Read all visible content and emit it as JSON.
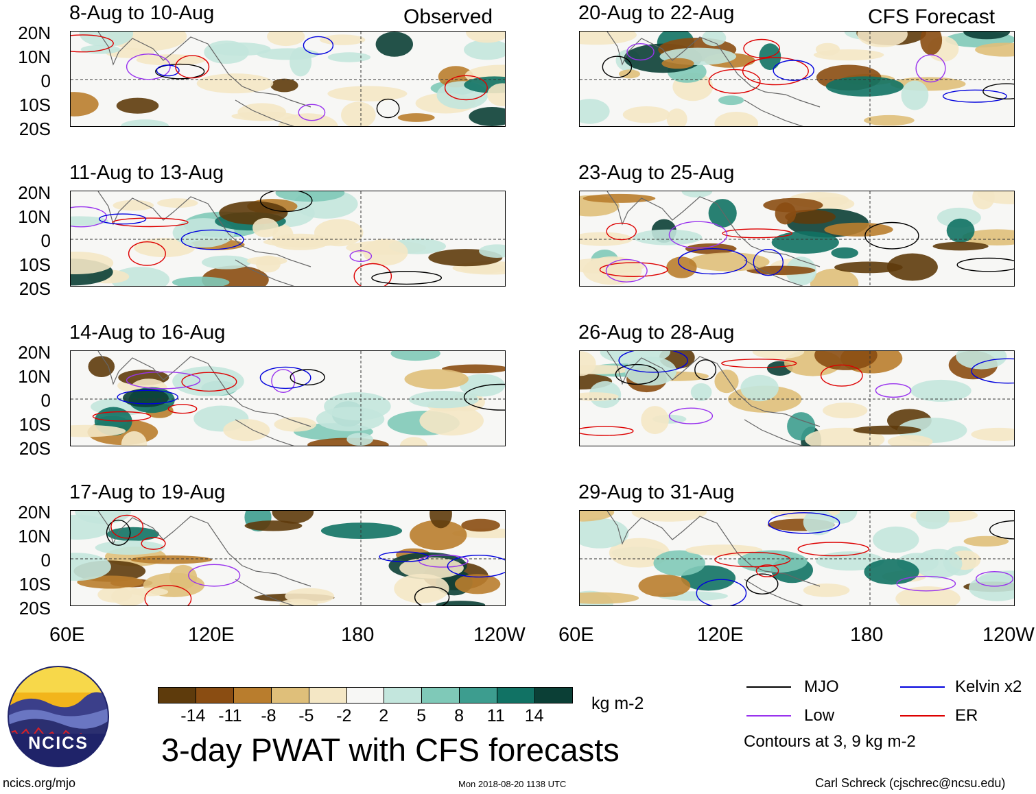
{
  "header": {
    "observed_label": "Observed",
    "forecast_label": "CFS Forecast"
  },
  "panels": [
    {
      "title": "8-Aug to 10-Aug",
      "column": "left",
      "row": 0
    },
    {
      "title": "11-Aug to 13-Aug",
      "column": "left",
      "row": 1
    },
    {
      "title": "14-Aug to 16-Aug",
      "column": "left",
      "row": 2
    },
    {
      "title": "17-Aug to 19-Aug",
      "column": "left",
      "row": 3
    },
    {
      "title": "20-Aug to 22-Aug",
      "column": "right",
      "row": 0
    },
    {
      "title": "23-Aug to 25-Aug",
      "column": "right",
      "row": 1
    },
    {
      "title": "26-Aug to 28-Aug",
      "column": "right",
      "row": 2
    },
    {
      "title": "29-Aug to 31-Aug",
      "column": "right",
      "row": 3
    }
  ],
  "lat_labels": [
    "20N",
    "10N",
    "0",
    "10S",
    "20S"
  ],
  "lon_labels": [
    "60E",
    "120E",
    "180",
    "120W"
  ],
  "colorbar": {
    "colors": [
      "#5e3b0c",
      "#8a4d12",
      "#b97d2d",
      "#dfbf7a",
      "#f4e7c5",
      "#f7f7f5",
      "#c3e6dd",
      "#7fc9b8",
      "#3d9d8f",
      "#117264",
      "#0b3f36"
    ],
    "labels": [
      "-14",
      "-11",
      "-8",
      "-5",
      "-2",
      "2",
      "5",
      "8",
      "11",
      "14"
    ],
    "units": "kg m-2"
  },
  "title": "3-day PWAT with CFS forecasts",
  "legend": {
    "items": [
      {
        "label": "MJO",
        "color": "#000000"
      },
      {
        "label": "Kelvin x2",
        "color": "#0000dd"
      },
      {
        "label": "Low",
        "color": "#9933ee"
      },
      {
        "label": "ER",
        "color": "#dd0000"
      }
    ],
    "note": "Contours at 3, 9 kg m-2"
  },
  "footer": {
    "site": "ncics.org/mjo",
    "timestamp": "Mon 2018-08-20 1138 UTC",
    "author": "Carl Schreck (cjschrec@ncsu.edu)",
    "logo_text": "NCICS"
  }
}
